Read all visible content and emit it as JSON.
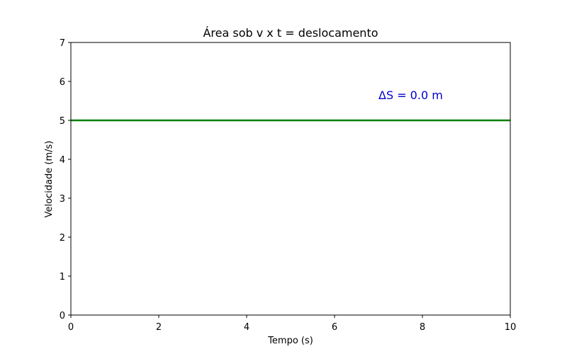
{
  "chart_data": {
    "type": "line",
    "title": "Área sob v x t = deslocamento",
    "xlabel": "Tempo (s)",
    "ylabel": "Velocidade (m/s)",
    "xlim": [
      0,
      10
    ],
    "ylim": [
      0,
      7
    ],
    "xticks": [
      0,
      2,
      4,
      6,
      8,
      10
    ],
    "yticks": [
      0,
      1,
      2,
      3,
      4,
      5,
      6,
      7
    ],
    "grid": false,
    "series": [
      {
        "x": [
          0,
          10
        ],
        "y": [
          5,
          5
        ],
        "color": "#008000"
      }
    ],
    "annotations": [
      {
        "text": "ΔS = 0.0 m",
        "x": 7,
        "y": 5.55,
        "color": "#0000cc"
      }
    ]
  }
}
